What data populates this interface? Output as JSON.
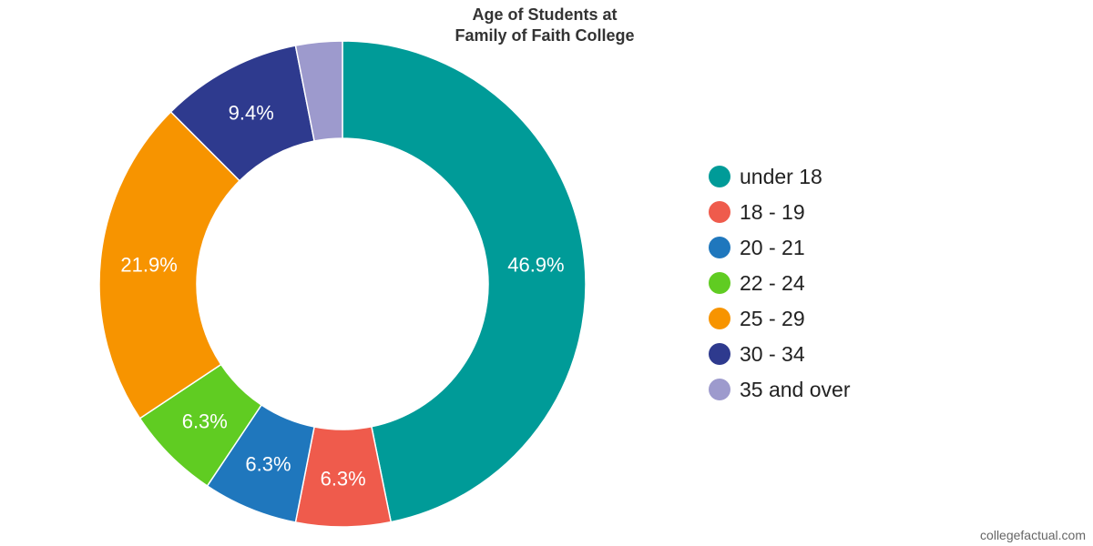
{
  "chart_data": {
    "type": "pie",
    "variant": "donut",
    "title_lines": [
      "Age of Students at",
      "Family of Faith College"
    ],
    "categories": [
      "under 18",
      "18 - 19",
      "20 - 21",
      "22 - 24",
      "25 - 29",
      "30 - 34",
      "35 and over"
    ],
    "values": [
      46.9,
      6.3,
      6.3,
      6.3,
      21.9,
      9.4,
      3.1
    ],
    "labels": [
      "46.9%",
      "6.3%",
      "6.3%",
      "6.3%",
      "21.9%",
      "9.4%",
      ""
    ],
    "colors": [
      "#009b98",
      "#ef5b4c",
      "#1f77bd",
      "#60cc22",
      "#f79400",
      "#2e3a8e",
      "#9d9acd"
    ],
    "legend_position": "right",
    "start_angle_deg": 0,
    "direction": "clockwise"
  },
  "watermark": "collegefactual.com"
}
